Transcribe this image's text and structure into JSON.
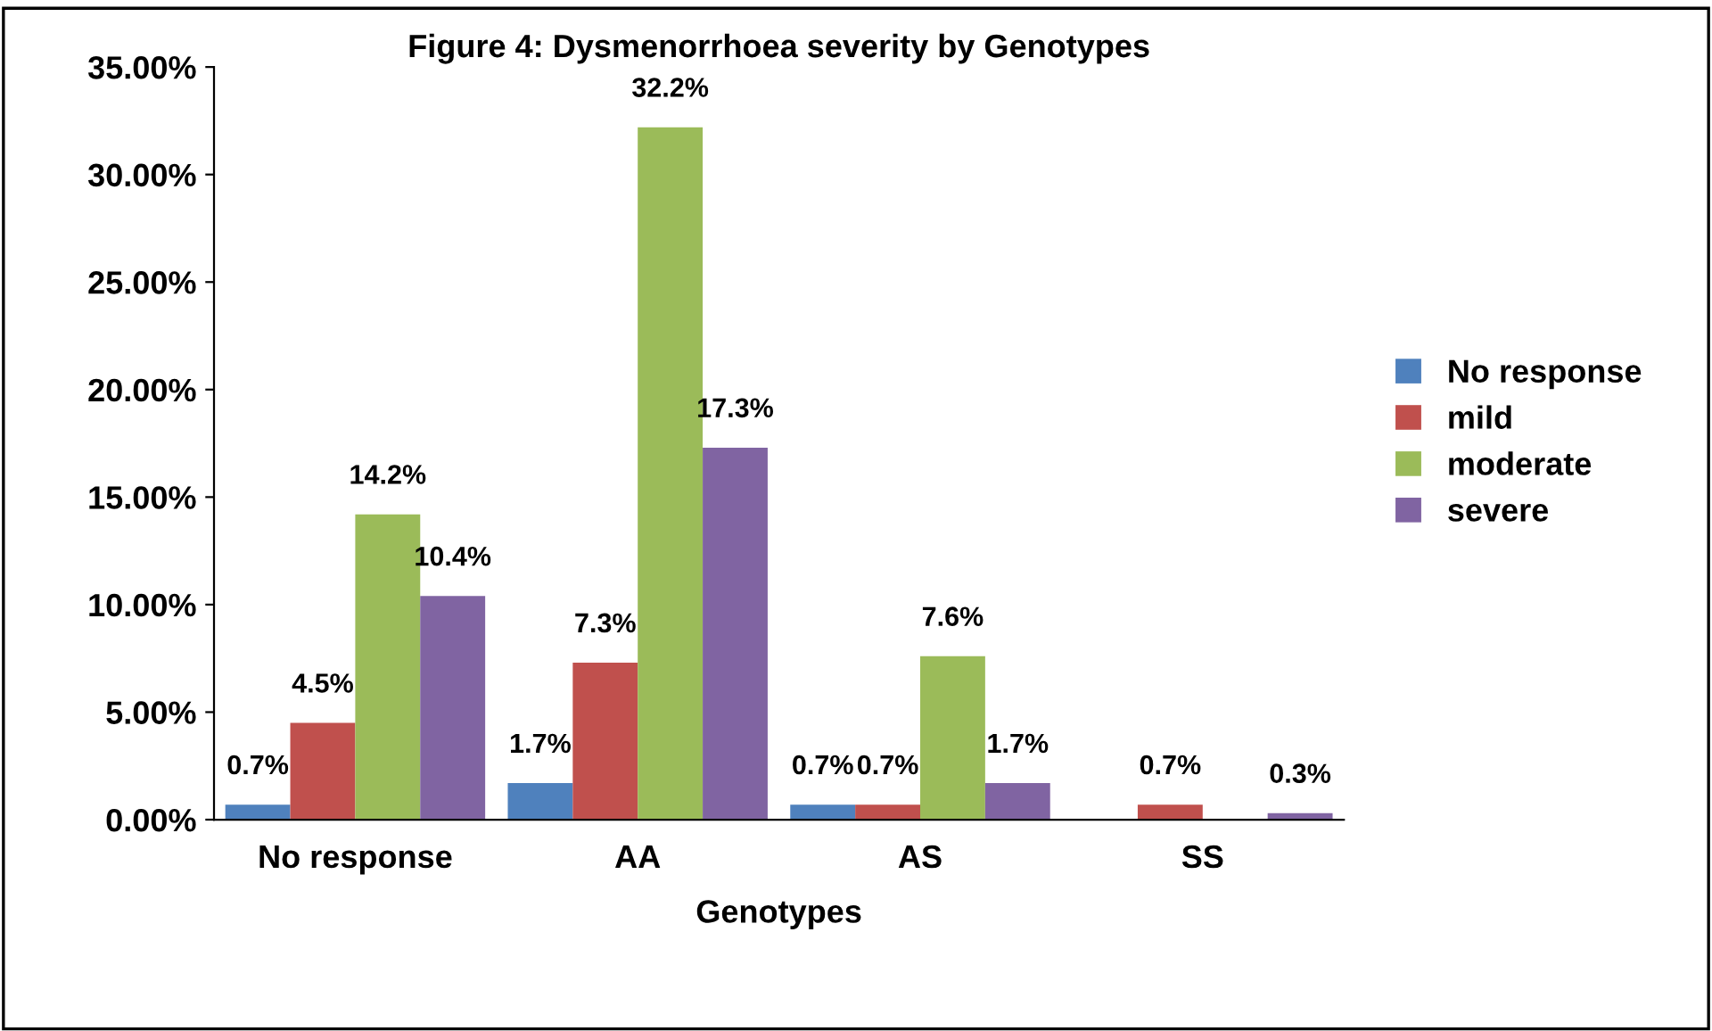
{
  "chart_data": {
    "type": "bar",
    "title": "Figure 4: Dysmenorrhoea severity by Genotypes",
    "xlabel": "Genotypes",
    "categories": [
      "No response",
      "AA",
      "AS",
      "SS"
    ],
    "series": [
      {
        "name": "No response",
        "color": "#4f81bd",
        "values": [
          0.7,
          1.7,
          0.7,
          null
        ],
        "value_labels": [
          "0.7%",
          "1.7%",
          "0.7%",
          null
        ]
      },
      {
        "name": "mild",
        "color": "#c0504d",
        "values": [
          4.5,
          7.3,
          0.7,
          0.7
        ],
        "value_labels": [
          "4.5%",
          "7.3%",
          "0.7%",
          "0.7%"
        ]
      },
      {
        "name": "moderate",
        "color": "#9bbb59",
        "values": [
          14.2,
          32.2,
          7.6,
          null
        ],
        "value_labels": [
          "14.2%",
          "32.2%",
          "7.6%",
          null
        ]
      },
      {
        "name": "severe",
        "color": "#8064a2",
        "values": [
          10.4,
          17.3,
          1.7,
          0.3
        ],
        "value_labels": [
          "10.4%",
          "17.3%",
          "1.7%",
          "0.3%"
        ]
      }
    ],
    "ylim": [
      0,
      35
    ],
    "yticks": [
      {
        "value": 0,
        "label": "0.00%"
      },
      {
        "value": 5,
        "label": "5.00%"
      },
      {
        "value": 10,
        "label": "10.00%"
      },
      {
        "value": 15,
        "label": "15.00%"
      },
      {
        "value": 20,
        "label": "20.00%"
      },
      {
        "value": 25,
        "label": "25.00%"
      },
      {
        "value": 30,
        "label": "30.00%"
      },
      {
        "value": 35,
        "label": "35.00%"
      }
    ],
    "grid": false,
    "legend": "right"
  }
}
